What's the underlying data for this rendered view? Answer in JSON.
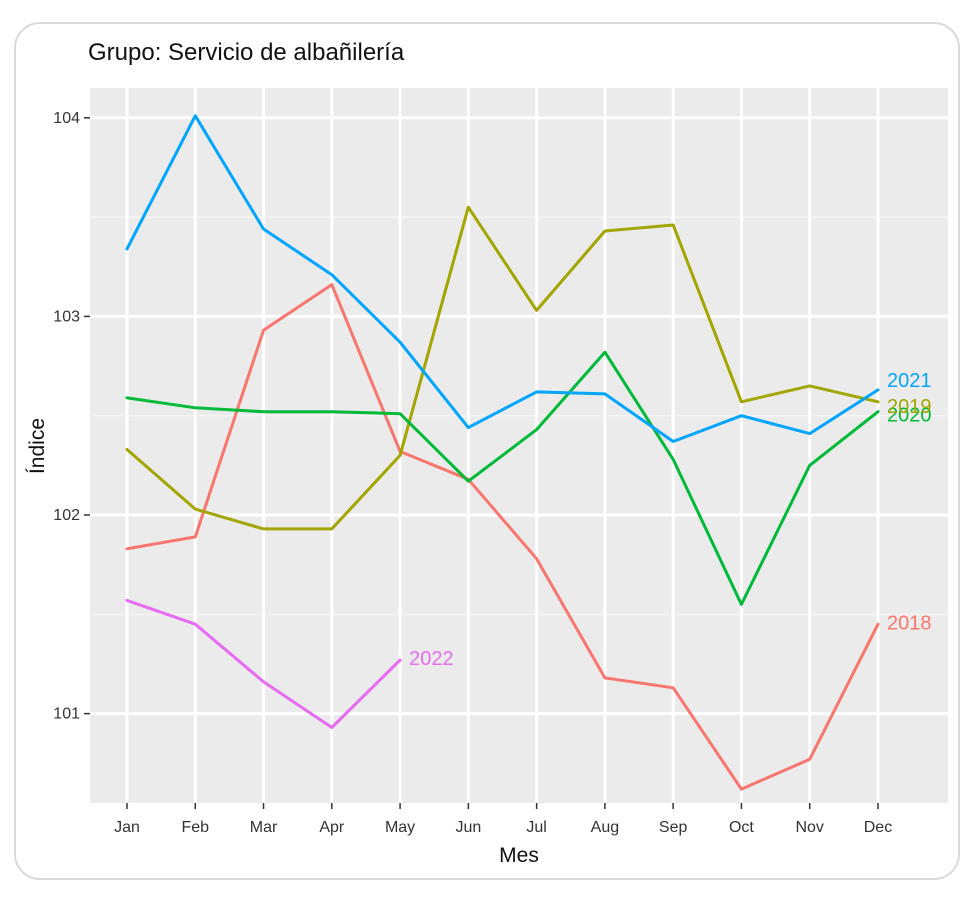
{
  "chart_data": {
    "type": "line",
    "title": "Grupo: Servicio de albañilería",
    "xlabel": "Mes",
    "ylabel": "Índice",
    "categories": [
      "Jan",
      "Feb",
      "Mar",
      "Apr",
      "May",
      "Jun",
      "Jul",
      "Aug",
      "Sep",
      "Oct",
      "Nov",
      "Dec"
    ],
    "ylim": [
      100.55,
      104.15
    ],
    "yticks": [
      101,
      102,
      103,
      104
    ],
    "ytick_labels": [
      "101",
      "102",
      "103",
      "104"
    ],
    "grid": true,
    "series": [
      {
        "name": "2018",
        "color": "#f8766d",
        "values": [
          101.83,
          101.89,
          102.93,
          103.16,
          102.32,
          102.18,
          101.78,
          101.18,
          101.13,
          100.62,
          100.77,
          101.45
        ]
      },
      {
        "name": "2019",
        "color": "#a3a500",
        "values": [
          102.33,
          102.03,
          101.93,
          101.93,
          102.3,
          103.55,
          103.03,
          103.43,
          103.46,
          102.57,
          102.65,
          102.57
        ]
      },
      {
        "name": "2020",
        "color": "#00ba38",
        "values": [
          102.59,
          102.54,
          102.52,
          102.52,
          102.51,
          102.17,
          102.43,
          102.82,
          102.28,
          101.55,
          102.25,
          102.52
        ]
      },
      {
        "name": "2021",
        "color": "#00a5ff",
        "values": [
          103.34,
          104.01,
          103.44,
          103.21,
          102.87,
          102.44,
          102.62,
          102.61,
          102.37,
          102.5,
          102.41,
          102.63
        ]
      },
      {
        "name": "2022",
        "color": "#e76bf3",
        "values": [
          101.57,
          101.45,
          101.16,
          100.93,
          101.27,
          null,
          null,
          null,
          null,
          null,
          null,
          null
        ]
      }
    ],
    "end_labels": [
      {
        "series": "2021",
        "text": "2021"
      },
      {
        "series": "2020",
        "text": "2020"
      },
      {
        "series": "2019",
        "text": "2019"
      },
      {
        "series": "2018",
        "text": "2018"
      },
      {
        "series": "2022",
        "text": "2022"
      }
    ]
  }
}
